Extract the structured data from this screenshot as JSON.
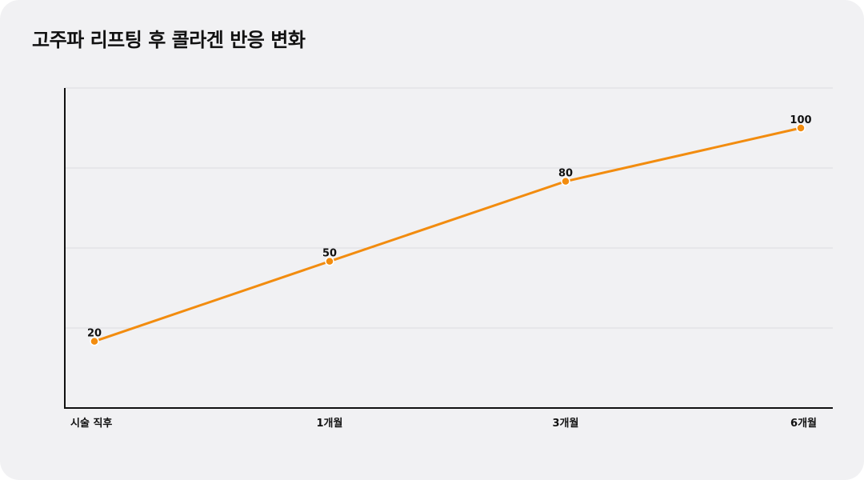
{
  "chart_data": {
    "type": "line",
    "title": "고주파 리프팅 후 콜라겐 반응 변화",
    "xlabel": "",
    "ylabel": "",
    "categories": [
      "시술 직후",
      "1개월",
      "3개월",
      "6개월"
    ],
    "series": [
      {
        "values": [
          20,
          50,
          80,
          100
        ]
      }
    ],
    "ylim": [
      -5,
      115
    ],
    "grid": true,
    "legend": "none",
    "line_color": "#f28c0f",
    "point_color": "#f28c0f",
    "background_color": "#f1f1f3"
  }
}
